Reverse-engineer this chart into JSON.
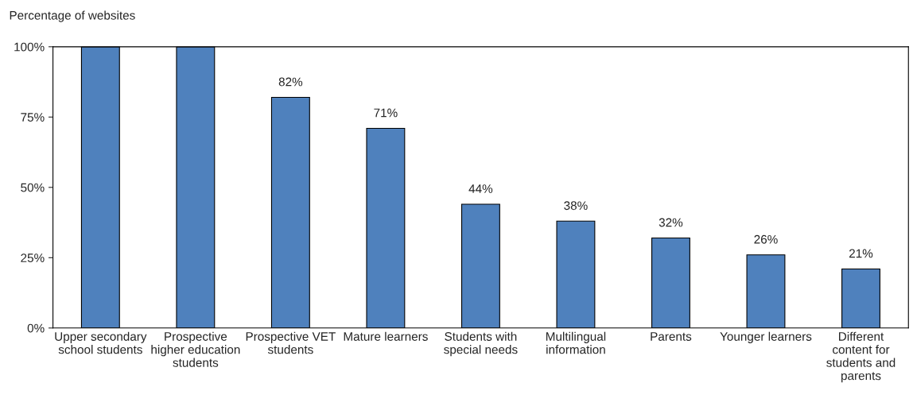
{
  "chart_data": {
    "type": "bar",
    "ylabel": "Percentage of websites",
    "categories": [
      "Upper secondary school students",
      "Prospective higher education students",
      "Prospective VET students",
      "Mature learners",
      "Students with special needs",
      "Multilingual information",
      "Parents",
      "Younger learners",
      "Different content for students and parents"
    ],
    "values": [
      100,
      100,
      82,
      71,
      44,
      38,
      32,
      26,
      21
    ],
    "value_labels": [
      null,
      null,
      "82%",
      "71%",
      "44%",
      "38%",
      "32%",
      "26%",
      "21%"
    ],
    "color": "#4f81bd",
    "ylim": [
      0,
      100
    ],
    "yticks": [
      {
        "value": 0,
        "label": "0%"
      },
      {
        "value": 25,
        "label": "25%"
      },
      {
        "value": 50,
        "label": "50%"
      },
      {
        "value": 75,
        "label": "75%"
      },
      {
        "value": 100,
        "label": "100%"
      }
    ],
    "grid": false
  }
}
